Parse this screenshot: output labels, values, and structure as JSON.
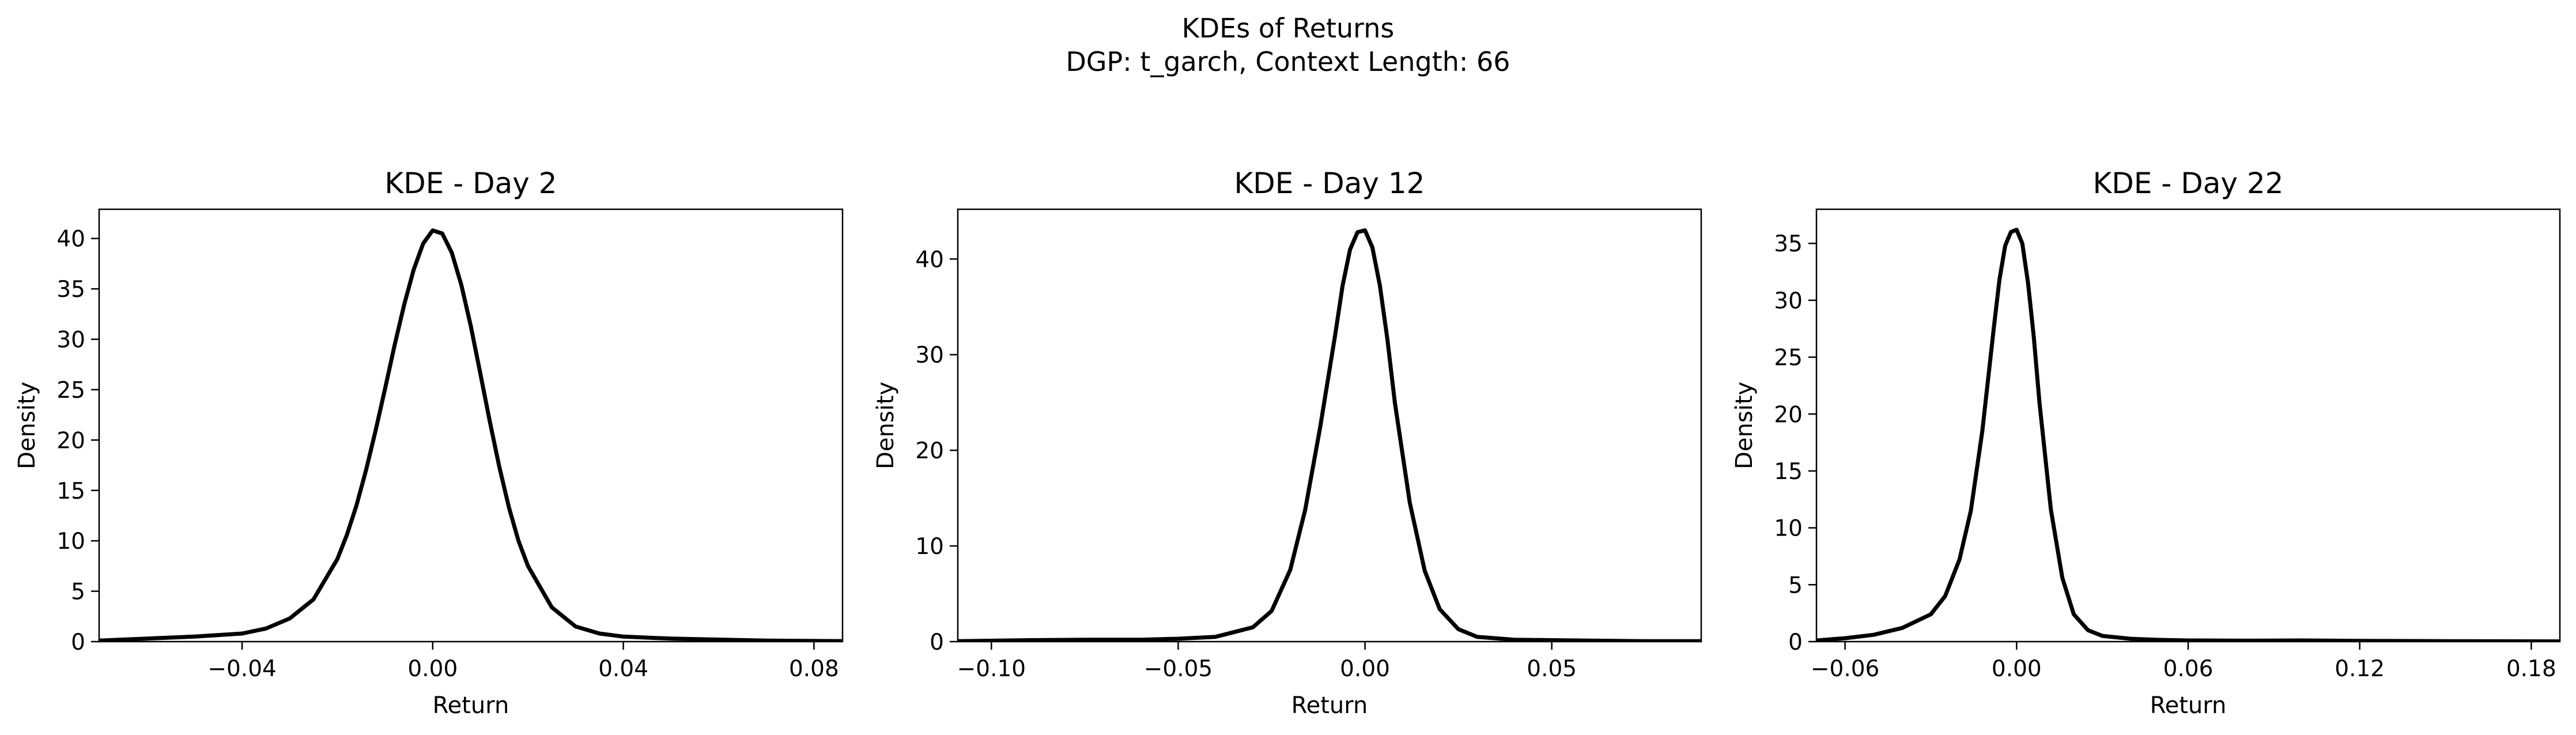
{
  "figure": {
    "title_line1": "KDEs of Returns",
    "title_line2": "DGP: t_garch, Context Length: 66"
  },
  "chart_data": [
    {
      "type": "line",
      "title": "KDE - Day 2",
      "xlabel": "Return",
      "ylabel": "Density",
      "xlim": [
        -0.07,
        0.086
      ],
      "ylim": [
        0,
        42.9
      ],
      "xticks": [
        -0.04,
        0.0,
        0.04,
        0.08
      ],
      "xtick_labels": [
        "−0.04",
        "0.00",
        "0.04",
        "0.08"
      ],
      "yticks": [
        0,
        5,
        10,
        15,
        20,
        25,
        30,
        35,
        40
      ],
      "ytick_labels": [
        "0",
        "5",
        "10",
        "15",
        "20",
        "25",
        "30",
        "35",
        "40"
      ],
      "grid": false,
      "legend": "none",
      "line_color": "#000000",
      "series": [
        {
          "x": [
            -0.07,
            -0.06,
            -0.05,
            -0.04,
            -0.035,
            -0.03,
            -0.025,
            -0.02,
            -0.018,
            -0.016,
            -0.014,
            -0.012,
            -0.01,
            -0.008,
            -0.006,
            -0.004,
            -0.002,
            0.0,
            0.002,
            0.004,
            0.006,
            0.008,
            0.01,
            0.012,
            0.014,
            0.016,
            0.018,
            0.02,
            0.025,
            0.03,
            0.035,
            0.04,
            0.05,
            0.06,
            0.07,
            0.086
          ],
          "y": [
            0.1,
            0.3,
            0.5,
            0.8,
            1.3,
            2.3,
            4.2,
            8.2,
            10.6,
            13.5,
            17.0,
            20.9,
            25.1,
            29.4,
            33.4,
            36.9,
            39.5,
            40.8,
            40.5,
            38.6,
            35.4,
            31.3,
            26.6,
            21.8,
            17.3,
            13.3,
            10.0,
            7.5,
            3.4,
            1.5,
            0.8,
            0.5,
            0.3,
            0.2,
            0.1,
            0.05
          ]
        }
      ]
    },
    {
      "type": "line",
      "title": "KDE - Day 12",
      "xlabel": "Return",
      "ylabel": "Density",
      "xlim": [
        -0.109,
        0.09
      ],
      "ylim": [
        0,
        45.2
      ],
      "xticks": [
        -0.1,
        -0.05,
        0.0,
        0.05
      ],
      "xtick_labels": [
        "−0.10",
        "−0.05",
        "0.00",
        "0.05"
      ],
      "yticks": [
        0,
        10,
        20,
        30,
        40
      ],
      "ytick_labels": [
        "0",
        "10",
        "20",
        "30",
        "40"
      ],
      "grid": false,
      "legend": "none",
      "line_color": "#000000",
      "series": [
        {
          "x": [
            -0.109,
            -0.09,
            -0.075,
            -0.06,
            -0.05,
            -0.04,
            -0.03,
            -0.025,
            -0.02,
            -0.016,
            -0.012,
            -0.008,
            -0.006,
            -0.004,
            -0.002,
            0.0,
            0.002,
            0.004,
            0.006,
            0.008,
            0.012,
            0.016,
            0.02,
            0.025,
            0.03,
            0.04,
            0.05,
            0.06,
            0.075,
            0.09
          ],
          "y": [
            0.05,
            0.15,
            0.2,
            0.2,
            0.3,
            0.5,
            1.5,
            3.2,
            7.5,
            13.8,
            22.4,
            32.0,
            37.2,
            41.0,
            42.8,
            43.0,
            41.2,
            37.2,
            31.6,
            25.0,
            14.5,
            7.4,
            3.4,
            1.3,
            0.5,
            0.2,
            0.15,
            0.1,
            0.05,
            0.05
          ]
        }
      ]
    },
    {
      "type": "line",
      "title": "KDE - Day 22",
      "xlabel": "Return",
      "ylabel": "Density",
      "xlim": [
        -0.07,
        0.19
      ],
      "ylim": [
        0,
        38
      ],
      "xticks": [
        -0.06,
        0.0,
        0.06,
        0.12,
        0.18
      ],
      "xtick_labels": [
        "−0.06",
        "0.00",
        "0.06",
        "0.12",
        "0.18"
      ],
      "yticks": [
        0,
        5,
        10,
        15,
        20,
        25,
        30,
        35
      ],
      "ytick_labels": [
        "0",
        "5",
        "10",
        "15",
        "20",
        "25",
        "30",
        "35"
      ],
      "grid": false,
      "legend": "none",
      "line_color": "#000000",
      "series": [
        {
          "x": [
            -0.07,
            -0.06,
            -0.05,
            -0.04,
            -0.03,
            -0.025,
            -0.02,
            -0.016,
            -0.012,
            -0.008,
            -0.006,
            -0.004,
            -0.002,
            0.0,
            0.002,
            0.004,
            0.006,
            0.008,
            0.012,
            0.016,
            0.02,
            0.025,
            0.03,
            0.04,
            0.05,
            0.06,
            0.08,
            0.1,
            0.12,
            0.15,
            0.19
          ],
          "y": [
            0.1,
            0.3,
            0.6,
            1.2,
            2.4,
            4.0,
            7.2,
            11.5,
            18.5,
            27.5,
            31.8,
            34.8,
            36.0,
            36.2,
            35.0,
            31.5,
            26.8,
            21.0,
            11.6,
            5.6,
            2.4,
            1.0,
            0.5,
            0.25,
            0.15,
            0.1,
            0.08,
            0.1,
            0.06,
            0.04,
            0.02
          ]
        }
      ]
    }
  ]
}
